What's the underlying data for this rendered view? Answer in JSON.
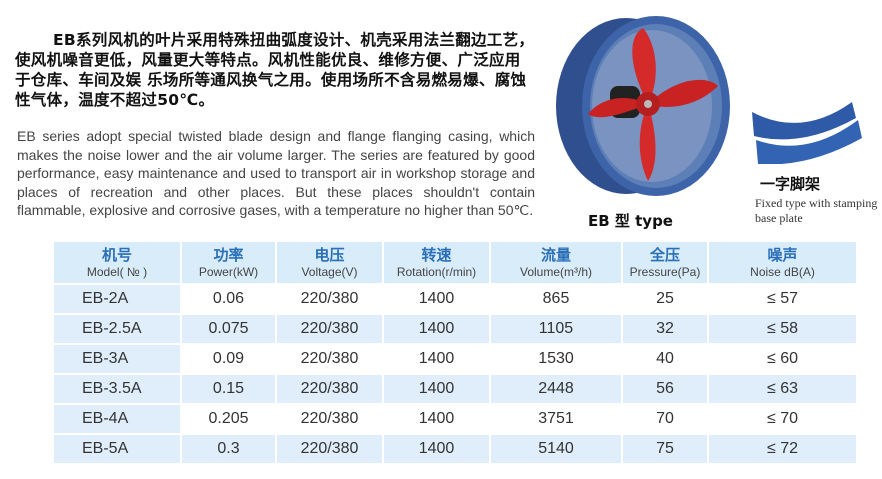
{
  "intro_cn": "EB系列风机的叶片采用特殊扭曲弧度设计、机壳采用法兰翻边工艺，使风机噪音更低，风量更大等特点。风机性能优良、维修方便、广泛应用于仓库、车间及娱 乐场所等通风换气之用。使用场所不含易燃易爆、腐蚀性气体，温度不超过50℃。",
  "intro_en": "EB series adopt special twisted blade design and flange flanging casing, which makes the noise lower and the air volume larger. The series are featured by good performance, easy maintenance and used to transport air in workshop storage and places of recreation and other places. But these places shouldn't contain flammable,  explosive and corrosive gases, with a temperature no higher than 50℃.",
  "fan_label": "EB 型 type",
  "base_label_cn": "一字脚架",
  "base_label_en": "Fixed type with stamping base plate",
  "colors": {
    "header_bg": "#d9ecf9",
    "header_cn": "#2a6fb7",
    "fan_body": "#3a5a9a",
    "blade": "#d42a2a"
  },
  "table": {
    "headers": [
      {
        "cn": "机号",
        "en": "Model( № )"
      },
      {
        "cn": "功率",
        "en": "Power(kW)"
      },
      {
        "cn": "电压",
        "en": "Voltage(V)"
      },
      {
        "cn": "转速",
        "en": "Rotation(r/min)"
      },
      {
        "cn": "流量",
        "en": "Volume(m³/h)"
      },
      {
        "cn": "全压",
        "en": "Pressure(Pa)"
      },
      {
        "cn": "噪声",
        "en": "Noise dB(A)"
      }
    ],
    "rows": [
      [
        "EB-2A",
        "0.06",
        "220/380",
        "1400",
        "865",
        "25",
        "≤ 57"
      ],
      [
        "EB-2.5A",
        "0.075",
        "220/380",
        "1400",
        "1105",
        "32",
        "≤ 58"
      ],
      [
        "EB-3A",
        "0.09",
        "220/380",
        "1400",
        "1530",
        "40",
        "≤ 60"
      ],
      [
        "EB-3.5A",
        "0.15",
        "220/380",
        "1400",
        "2448",
        "56",
        "≤ 63"
      ],
      [
        "EB-4A",
        "0.205",
        "220/380",
        "1400",
        "3751",
        "70",
        "≤ 70"
      ],
      [
        "EB-5A",
        "0.3",
        "220/380",
        "1400",
        "5140",
        "75",
        "≤ 72"
      ]
    ]
  }
}
